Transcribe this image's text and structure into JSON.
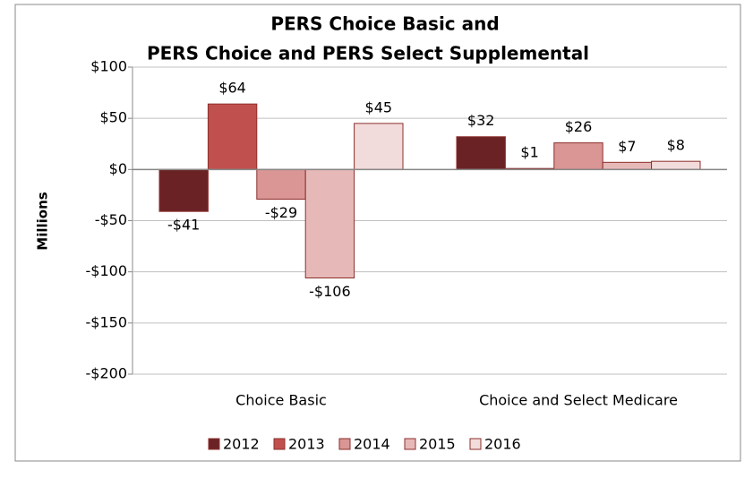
{
  "chart_data": {
    "type": "bar",
    "title": [
      "PERS Choice Basic and",
      "PERS Choice and PERS Select Supplemental"
    ],
    "y_label": "Millions",
    "categories": [
      "Choice Basic",
      "Choice and Select Medicare"
    ],
    "series": [
      {
        "name": "2012",
        "color": "#6b2224",
        "values": [
          -41,
          32
        ],
        "value_labels": [
          "-$41",
          "$32"
        ]
      },
      {
        "name": "2013",
        "color": "#c0504d",
        "values": [
          64,
          1
        ],
        "value_labels": [
          "$64",
          "$1"
        ]
      },
      {
        "name": "2014",
        "color": "#d99694",
        "values": [
          -29,
          26
        ],
        "value_labels": [
          "-$29",
          "$26"
        ]
      },
      {
        "name": "2015",
        "color": "#e6b9b8",
        "values": [
          -106,
          7
        ],
        "value_labels": [
          "-$106",
          "$7"
        ]
      },
      {
        "name": "2016",
        "color": "#f2dcdb",
        "values": [
          45,
          8
        ],
        "value_labels": [
          "$45",
          "$8"
        ]
      }
    ],
    "ylim": [
      -200,
      100
    ],
    "yticks": [
      {
        "value": -200,
        "label": "-$200"
      },
      {
        "value": -150,
        "label": "-$150"
      },
      {
        "value": -100,
        "label": "-$100"
      },
      {
        "value": -50,
        "label": "-$50"
      },
      {
        "value": 0,
        "label": "$0"
      },
      {
        "value": 50,
        "label": "$50"
      },
      {
        "value": 100,
        "label": "$100"
      }
    ],
    "grid": true,
    "legend": "bottom"
  }
}
